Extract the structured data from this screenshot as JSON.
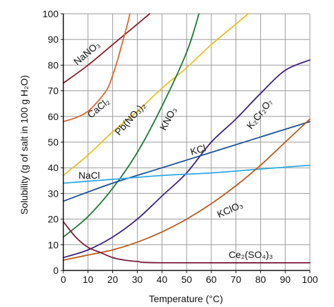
{
  "chart_data": {
    "type": "line",
    "title": "",
    "xlabel": "Temperature (°C)",
    "ylabel": "Solubility (g of salt in 100 g H₂O)",
    "xlim": [
      0,
      100
    ],
    "ylim": [
      0,
      100
    ],
    "x_ticks": [
      0,
      10,
      20,
      30,
      40,
      50,
      60,
      70,
      80,
      90,
      100
    ],
    "y_ticks": [
      0,
      10,
      20,
      30,
      40,
      50,
      60,
      70,
      80,
      90,
      100
    ],
    "grid": true,
    "series": [
      {
        "name": "NaNO₃",
        "color": "#8b1a2e",
        "points": [
          [
            0,
            73
          ],
          [
            10,
            80
          ],
          [
            20,
            88
          ],
          [
            30,
            96
          ],
          [
            35,
            100
          ]
        ]
      },
      {
        "name": "CaCl₂",
        "color": "#e0642a",
        "points": [
          [
            0,
            58
          ],
          [
            5,
            59.5
          ],
          [
            10,
            62
          ],
          [
            15,
            67
          ],
          [
            18,
            71
          ],
          [
            20,
            76
          ],
          [
            22,
            82
          ],
          [
            24,
            89
          ],
          [
            26,
            96
          ],
          [
            27,
            100
          ]
        ]
      },
      {
        "name": "Pb(NO₃)₂",
        "color": "#e8c020",
        "points": [
          [
            0,
            37
          ],
          [
            10,
            45
          ],
          [
            20,
            54
          ],
          [
            30,
            62
          ],
          [
            40,
            71
          ],
          [
            50,
            79
          ],
          [
            60,
            88
          ],
          [
            70,
            96
          ],
          [
            75,
            100
          ]
        ]
      },
      {
        "name": "KNO₃",
        "color": "#1a7a30",
        "points": [
          [
            0,
            13
          ],
          [
            10,
            21
          ],
          [
            20,
            32
          ],
          [
            30,
            46
          ],
          [
            40,
            64
          ],
          [
            50,
            85
          ],
          [
            55,
            100
          ]
        ]
      },
      {
        "name": "K₂Cr₂O₇",
        "color": "#3a1f80",
        "points": [
          [
            0,
            5
          ],
          [
            10,
            8
          ],
          [
            20,
            13
          ],
          [
            30,
            20
          ],
          [
            40,
            29
          ],
          [
            50,
            38
          ],
          [
            60,
            50
          ],
          [
            70,
            59
          ],
          [
            80,
            69
          ],
          [
            90,
            78
          ],
          [
            100,
            82
          ]
        ]
      },
      {
        "name": "KCl",
        "color": "#1a4f96",
        "points": [
          [
            0,
            27
          ],
          [
            20,
            34
          ],
          [
            40,
            40
          ],
          [
            60,
            46
          ],
          [
            80,
            52
          ],
          [
            100,
            58
          ]
        ]
      },
      {
        "name": "NaCl",
        "color": "#2da8e0",
        "points": [
          [
            0,
            34
          ],
          [
            20,
            35.5
          ],
          [
            40,
            37
          ],
          [
            60,
            38
          ],
          [
            80,
            39.5
          ],
          [
            100,
            41
          ]
        ]
      },
      {
        "name": "KClO₃",
        "color": "#b85a1a",
        "points": [
          [
            0,
            4
          ],
          [
            10,
            6
          ],
          [
            20,
            8
          ],
          [
            30,
            11
          ],
          [
            40,
            15
          ],
          [
            50,
            20
          ],
          [
            60,
            26
          ],
          [
            70,
            33
          ],
          [
            80,
            41
          ],
          [
            90,
            50
          ],
          [
            100,
            59
          ]
        ]
      },
      {
        "name": "Ce₂(SO₄)₃",
        "color": "#7a1a3a",
        "points": [
          [
            0,
            19
          ],
          [
            5,
            13
          ],
          [
            10,
            9
          ],
          [
            15,
            7
          ],
          [
            20,
            5
          ],
          [
            25,
            4
          ],
          [
            30,
            3.5
          ],
          [
            40,
            3
          ],
          [
            100,
            3
          ]
        ]
      }
    ]
  }
}
